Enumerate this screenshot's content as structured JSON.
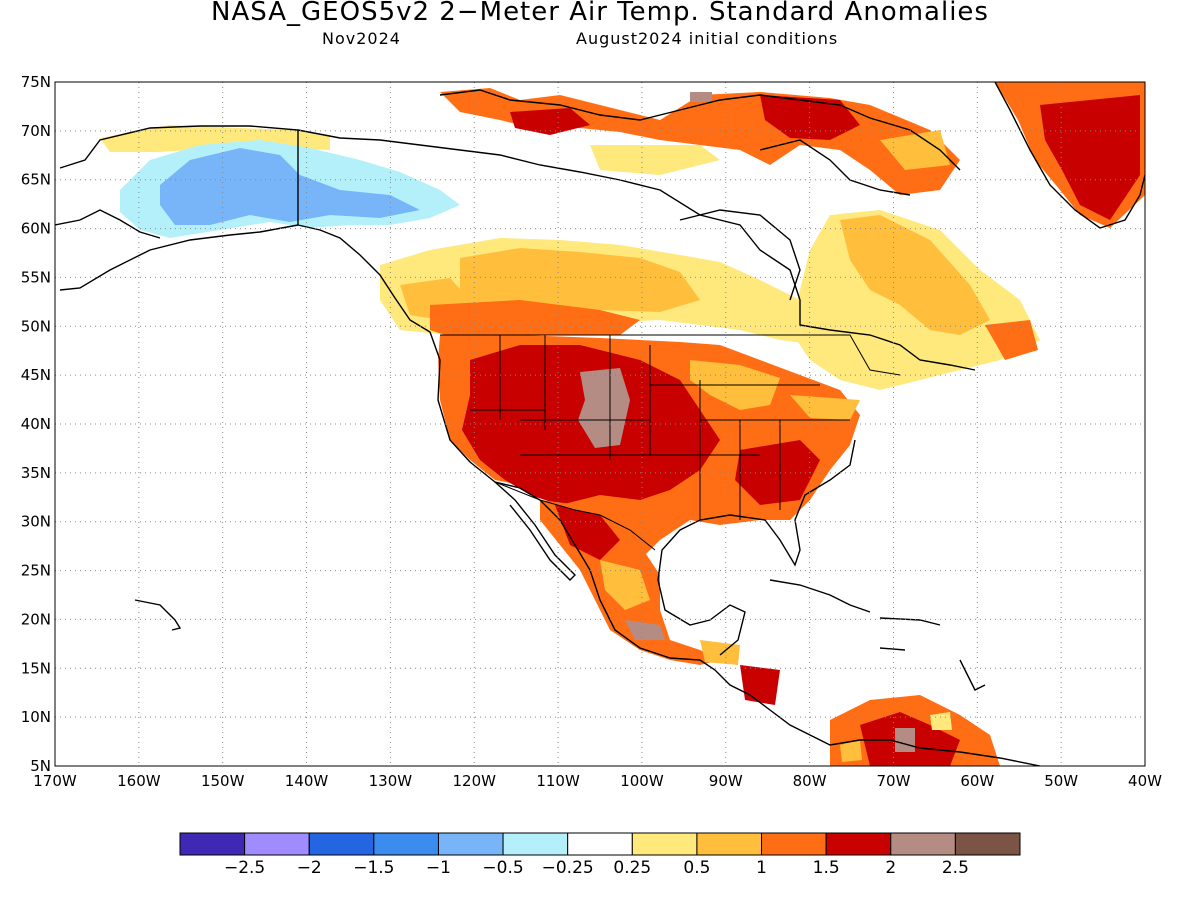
{
  "title": "NASA_GEOS5v2 2−Meter Air Temp. Standard Anomalies",
  "subtitle_left": "Nov2024",
  "subtitle_right": "August2024 initial conditions",
  "map": {
    "lat_labels": [
      "75N",
      "70N",
      "65N",
      "60N",
      "55N",
      "50N",
      "45N",
      "40N",
      "35N",
      "30N",
      "25N",
      "20N",
      "15N",
      "10N",
      "5N"
    ],
    "lon_labels": [
      "170W",
      "160W",
      "150W",
      "140W",
      "130W",
      "120W",
      "110W",
      "100W",
      "90W",
      "80W",
      "70W",
      "60W",
      "50W",
      "40W"
    ],
    "grid": "dotted",
    "features": [
      "North America coastline",
      "Greenland",
      "Central America",
      "Caribbean islands",
      "US state borders",
      "US–Canada border",
      "US–Mexico border",
      "Alaska–Canada border"
    ]
  },
  "anomaly_regions": [
    {
      "name": "Alaska & Yukon",
      "category": "-1 to -0.5"
    },
    {
      "name": "Arctic Alaska coast",
      "category": "0.25 to 0.5"
    },
    {
      "name": "Southern Canadian Prairies",
      "category": "0.5 to 1"
    },
    {
      "name": "Western & Central USA",
      "category": "1.5 to 2"
    },
    {
      "name": "Central Rockies",
      "category": "2 to 2.5"
    },
    {
      "name": "Eastern USA",
      "category": "1 to 1.5"
    },
    {
      "name": "Mexico",
      "category": "1 to 1.5"
    },
    {
      "name": "Greenland",
      "category": "1.5 to 2"
    },
    {
      "name": "Quebec & Labrador",
      "category": "0.5 to 1"
    },
    {
      "name": "Hudson Bay region",
      "category": "-0.25 to 0.25"
    },
    {
      "name": "Northern South America",
      "category": "1 to 2"
    }
  ],
  "colorbar": {
    "colors": [
      "#3e28b4",
      "#a08cff",
      "#2466e2",
      "#3c8cf0",
      "#78b4f8",
      "#b4f0fa",
      "#ffffff",
      "#ffe87c",
      "#ffbe3c",
      "#ff6e14",
      "#c80000",
      "#b48c84",
      "#7b5446"
    ],
    "labels": [
      "−2.5",
      "−2",
      "−1.5",
      "−1",
      "−0.5",
      "−0.25",
      "0.25",
      "0.5",
      "1",
      "1.5",
      "2",
      "2.5"
    ]
  }
}
